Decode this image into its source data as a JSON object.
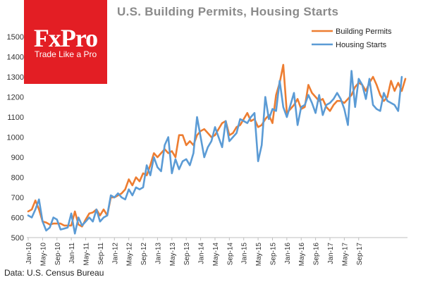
{
  "logo": {
    "brand": "FxPro",
    "tagline": "Trade Like a Pro"
  },
  "chart_data": {
    "type": "line",
    "title": "U.S. Building Permits, Housing Starts",
    "source": "Data: U.S. Census Bureau",
    "xlabel": "",
    "ylabel": "",
    "ylim": [
      500,
      1500
    ],
    "yticks": [
      500,
      600,
      700,
      800,
      900,
      1000,
      1100,
      1200,
      1300,
      1400,
      1500
    ],
    "grid": false,
    "legend_position": "top-right",
    "x_tick_labels": [
      "Jan-10",
      "May-10",
      "Sep-10",
      "Jan-11",
      "May-11",
      "Sep-11",
      "Jan-12",
      "May-12",
      "Sep-12",
      "Jan-13",
      "May-13",
      "Sep-13",
      "Jan-14",
      "May-14",
      "Sep-14",
      "Jan-15",
      "May-15",
      "Sep-15",
      "Jan-16",
      "May-16",
      "Sep-16",
      "Jan-17",
      "May-17",
      "Sep-17"
    ],
    "x_start": "Jan-10",
    "x_end": "Oct-17",
    "series": [
      {
        "name": "Building Permits",
        "color": "#ed7d31",
        "values": [
          630,
          640,
          685,
          640,
          580,
          575,
          565,
          570,
          570,
          570,
          560,
          560,
          560,
          630,
          565,
          555,
          590,
          620,
          625,
          640,
          610,
          640,
          610,
          700,
          700,
          710,
          720,
          740,
          790,
          760,
          800,
          780,
          820,
          810,
          860,
          920,
          900,
          920,
          940,
          920,
          930,
          900,
          1010,
          1010,
          960,
          980,
          960,
          1010,
          1030,
          1040,
          1020,
          1000,
          1010,
          1040,
          1070,
          1080,
          1010,
          1020,
          1050,
          1060,
          1090,
          1120,
          1080,
          1090,
          1050,
          1060,
          1090,
          1110,
          1070,
          1210,
          1270,
          1360,
          1120,
          1140,
          1160,
          1190,
          1140,
          1150,
          1260,
          1220,
          1200,
          1180,
          1190,
          1150,
          1130,
          1160,
          1180,
          1180,
          1170,
          1190,
          1210,
          1250,
          1270,
          1260,
          1230,
          1270,
          1300,
          1260,
          1210,
          1180,
          1200,
          1280,
          1230,
          1270,
          1230,
          1290
        ]
      },
      {
        "name": "Housing Starts",
        "color": "#5b9bd5",
        "values": [
          610,
          600,
          640,
          690,
          580,
          535,
          550,
          600,
          590,
          540,
          545,
          550,
          620,
          520,
          600,
          560,
          580,
          600,
          580,
          640,
          580,
          600,
          610,
          710,
          700,
          720,
          700,
          690,
          740,
          710,
          750,
          740,
          750,
          860,
          810,
          900,
          850,
          830,
          960,
          1000,
          820,
          890,
          840,
          880,
          890,
          860,
          920,
          1100,
          1000,
          900,
          950,
          980,
          1050,
          1000,
          950,
          1080,
          980,
          1000,
          1020,
          1090,
          1080,
          1070,
          1100,
          1120,
          880,
          960,
          1200,
          1090,
          1140,
          1130,
          1280,
          1150,
          1100,
          1160,
          1220,
          1060,
          1150,
          1160,
          1210,
          1170,
          1120,
          1210,
          1110,
          1160,
          1170,
          1190,
          1220,
          1190,
          1140,
          1060,
          1330,
          1150,
          1290,
          1260,
          1190,
          1290,
          1160,
          1140,
          1130,
          1220,
          1180,
          1170,
          1160,
          1130,
          1300
        ]
      }
    ]
  }
}
